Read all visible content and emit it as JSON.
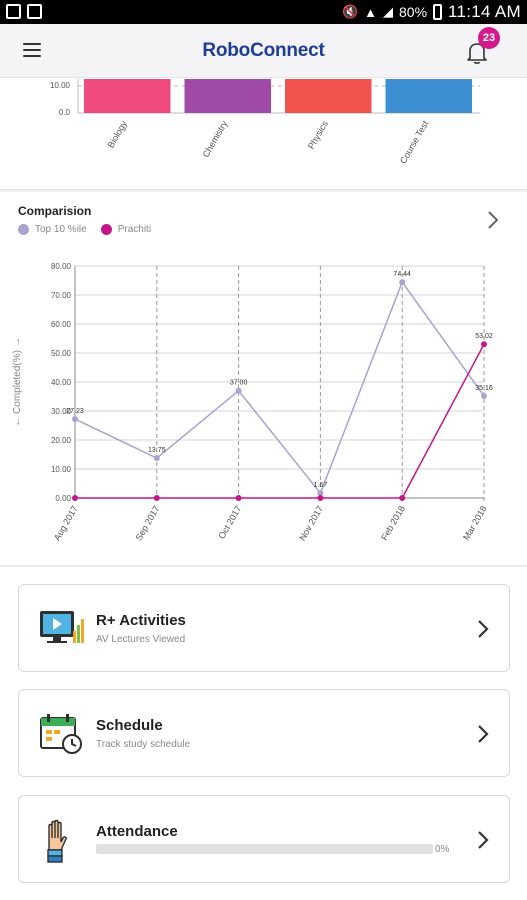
{
  "status_bar": {
    "battery": "80%",
    "time": "11:14 AM"
  },
  "app_bar": {
    "title": "RoboConnect",
    "notification_count": "23"
  },
  "bar_chart": {
    "chart_data": {
      "type": "bar",
      "categories": [
        "Biology",
        "Chemistry",
        "Physics",
        "Course Test"
      ],
      "y_ticks": [
        "10.00",
        "0.0"
      ],
      "colors": [
        "#ef4a7d",
        "#9e4aa6",
        "#f0524e",
        "#3e90d2"
      ]
    }
  },
  "comparison": {
    "title": "Comparision",
    "legend": [
      {
        "label": "Top 10 %ile",
        "color": "#a8a3cf"
      },
      {
        "label": "Prachiti",
        "color": "#c3168a"
      }
    ],
    "chart_data": {
      "type": "line",
      "categories": [
        "Aug 2017",
        "Sep 2017",
        "Oct 2017",
        "Nov 2017",
        "Feb 2018",
        "Mar 2018"
      ],
      "ylabel": "← Completed(%) →",
      "ylim": [
        0,
        80
      ],
      "y_ticks": [
        "80.00",
        "70.00",
        "60.00",
        "50.00",
        "40.00",
        "30.00",
        "20.00",
        "10.00",
        "0.00"
      ],
      "series": [
        {
          "name": "Top 10 %ile",
          "color": "#a8a3cf",
          "values": [
            27.23,
            13.75,
            37.0,
            1.67,
            74.44,
            35.16
          ],
          "labels": [
            "27.23",
            "13.75",
            "37.00",
            "1.67",
            "74.44",
            "35.16"
          ]
        },
        {
          "name": "Prachiti",
          "color": "#c3168a",
          "values": [
            0,
            0,
            0,
            0,
            0,
            53.02
          ],
          "labels": [
            "",
            "",
            "",
            "",
            "",
            "53.02"
          ]
        }
      ],
      "grid": true
    }
  },
  "cards": {
    "activities": {
      "title": "R+ Activities",
      "subtitle": "AV Lectures Viewed"
    },
    "schedule": {
      "title": "Schedule",
      "subtitle": "Track study schedule"
    },
    "attendance": {
      "title": "Attendance",
      "progress": 0,
      "progress_text": "0%"
    }
  }
}
